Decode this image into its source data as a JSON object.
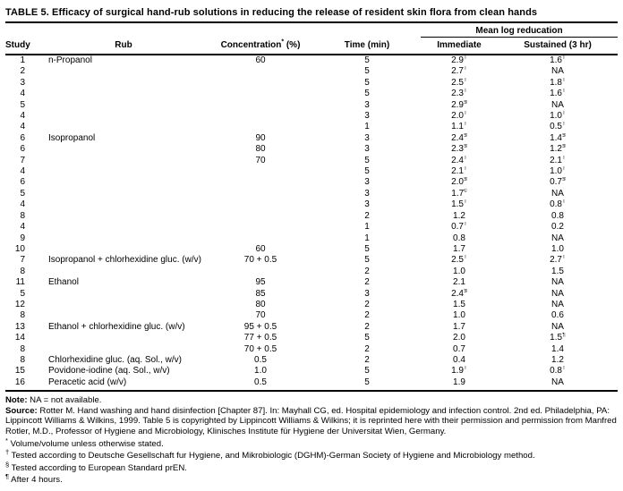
{
  "title": "TABLE 5. Efficacy of surgical hand-rub solutions in reducing the release of resident skin flora from clean hands",
  "table": {
    "headers": {
      "study": "Study",
      "rub": "Rub",
      "concentration_base": "Concentration",
      "concentration_sup": "*",
      "concentration_unit": " (%)",
      "time": "Time (min)",
      "mean_log_group": "Mean log reducation",
      "immediate": "Immediate",
      "sustained": "Sustained (3 hr)"
    },
    "rows": [
      [
        "1",
        "n-Propanol",
        "60",
        "5",
        "2.9†",
        "1.6†"
      ],
      [
        "2",
        "",
        "",
        "5",
        "2.7†",
        "NA"
      ],
      [
        "3",
        "",
        "",
        "5",
        "2.5†",
        "1.8†"
      ],
      [
        "4",
        "",
        "",
        "5",
        "2.3†",
        "1.6†"
      ],
      [
        "5",
        "",
        "",
        "3",
        "2.9§",
        "NA"
      ],
      [
        "4",
        "",
        "",
        "3",
        "2.0†",
        "1.0†"
      ],
      [
        "4",
        "",
        "",
        "1",
        "1.1†",
        "0.5†"
      ],
      [
        "6",
        "Isopropanol",
        "90",
        "3",
        "2.4§",
        "1.4§"
      ],
      [
        "6",
        "",
        "80",
        "3",
        "2.3§",
        "1.2§"
      ],
      [
        "7",
        "",
        "70",
        "5",
        "2.4†",
        "2.1†"
      ],
      [
        "4",
        "",
        "",
        "5",
        "2.1†",
        "1.0†"
      ],
      [
        "6",
        "",
        "",
        "3",
        "2.0§",
        "0.7§"
      ],
      [
        "5",
        "",
        "",
        "3",
        "1.7c",
        "NA"
      ],
      [
        "4",
        "",
        "",
        "3",
        "1.5†",
        "0.8†"
      ],
      [
        "8",
        "",
        "",
        "2",
        "1.2",
        "0.8"
      ],
      [
        "4",
        "",
        "",
        "1",
        "0.7†",
        "0.2"
      ],
      [
        "9",
        "",
        "",
        "1",
        "0.8",
        "NA"
      ],
      [
        "10",
        "",
        "60",
        "5",
        "1.7",
        "1.0"
      ],
      [
        "7",
        "Isopropanol + chlorhexidine gluc. (w/v)",
        "70 + 0.5",
        "5",
        "2.5†",
        "2.7†"
      ],
      [
        "8",
        "",
        "",
        "2",
        "1.0",
        "1.5"
      ],
      [
        "11",
        "Ethanol",
        "95",
        "2",
        "2.1",
        "NA"
      ],
      [
        "5",
        "",
        "85",
        "3",
        "2.4§",
        "NA"
      ],
      [
        "12",
        "",
        "80",
        "2",
        "1.5",
        "NA"
      ],
      [
        "8",
        "",
        "70",
        "2",
        "1.0",
        "0.6"
      ],
      [
        "13",
        "Ethanol + chlorhexidine gluc. (w/v)",
        "95 + 0.5",
        "2",
        "1.7",
        "NA"
      ],
      [
        "14",
        "",
        "77 + 0.5",
        "5",
        "2.0",
        "1.5¶"
      ],
      [
        "8",
        "",
        "70 + 0.5",
        "2",
        "0.7",
        "1.4"
      ],
      [
        "8",
        "Chlorhexidine gluc. (aq. Sol., w/v)",
        "0.5",
        "2",
        "0.4",
        "1.2"
      ],
      [
        "15",
        "Povidone-iodine (aq. Sol., w/v)",
        "1.0",
        "5",
        "1.9†",
        "0.8†"
      ],
      [
        "16",
        "Peracetic acid (w/v)",
        "0.5",
        "5",
        "1.9",
        "NA"
      ]
    ]
  },
  "footer": {
    "note_label": "Note:",
    "note_text": " NA = not available.",
    "source_label": "Source:",
    "source_text": " Rotter M. Hand washing and hand disinfection [Chapter 87]. In: Mayhall CG, ed. Hospital epidemiology and infection control. 2nd ed. Philadelphia, PA: Lippincott Williams & Wilkins, 1999. Table 5 is copyrighted by Lippincott Williams & Wilkins; it is reprinted here with their permission and permission from Manfred Rotler, M.D., Professor of Hygiene and Microbiology, Klinisches Institute für Hygiene der Universitat Wien, Germany.",
    "footnotes": [
      {
        "sym": "*",
        "text": "Volume/volume unless otherwise stated."
      },
      {
        "sym": "†",
        "text": "Tested according to Deutsche Gesellschaft fur Hygiene, and Mikrobiologic (DGHM)-German Society of Hygiene and Microbiology method."
      },
      {
        "sym": "§",
        "text": "Tested according to European Standard prEN."
      },
      {
        "sym": "¶",
        "text": "After 4 hours."
      }
    ]
  }
}
